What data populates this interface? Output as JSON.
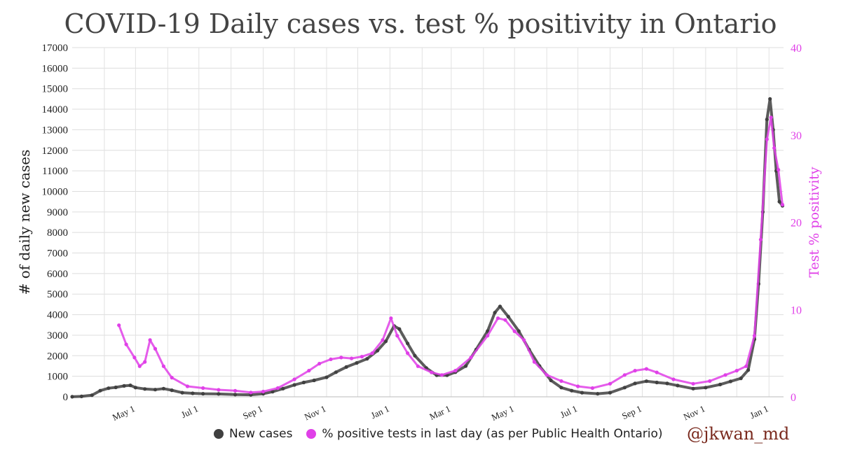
{
  "chart_data": {
    "type": "scatter",
    "title": "COVID-19 Daily cases vs. test % positivity in Ontario",
    "ylabel": "# of daily new cases",
    "y2label": "Test % positivity",
    "ylim": [
      0,
      17000
    ],
    "y2lim": [
      0,
      40
    ],
    "yticks": [
      "0",
      "1000",
      "2000",
      "3000",
      "4000",
      "5000",
      "6000",
      "7000",
      "8000",
      "9000",
      "10000",
      "11000",
      "12000",
      "13000",
      "14000",
      "15000",
      "16000",
      "17000"
    ],
    "y2ticks": [
      "0",
      "10",
      "20",
      "30",
      "40"
    ],
    "xticks": [
      "May 1",
      "Jul 1",
      "Sep 1",
      "Nov 1",
      "Jan 1",
      "Mar 1",
      "May 1",
      "Jul 1",
      "Sep 1",
      "Nov 1",
      "Jan 1"
    ],
    "x_range": [
      "2020-03-01",
      "2022-01-15"
    ],
    "grid": true,
    "legend_position": "bottom",
    "series": [
      {
        "name": "New cases",
        "color": "#404040",
        "axis": "left",
        "points": [
          [
            "2020-03-01",
            5
          ],
          [
            "2020-03-10",
            20
          ],
          [
            "2020-03-20",
            80
          ],
          [
            "2020-03-28",
            300
          ],
          [
            "2020-04-05",
            420
          ],
          [
            "2020-04-12",
            460
          ],
          [
            "2020-04-20",
            530
          ],
          [
            "2020-04-26",
            560
          ],
          [
            "2020-05-01",
            450
          ],
          [
            "2020-05-10",
            380
          ],
          [
            "2020-05-20",
            350
          ],
          [
            "2020-05-28",
            400
          ],
          [
            "2020-06-05",
            320
          ],
          [
            "2020-06-15",
            200
          ],
          [
            "2020-06-25",
            170
          ],
          [
            "2020-07-05",
            150
          ],
          [
            "2020-07-20",
            140
          ],
          [
            "2020-08-05",
            110
          ],
          [
            "2020-08-20",
            100
          ],
          [
            "2020-09-01",
            150
          ],
          [
            "2020-09-10",
            250
          ],
          [
            "2020-09-20",
            400
          ],
          [
            "2020-10-01",
            580
          ],
          [
            "2020-10-10",
            700
          ],
          [
            "2020-10-20",
            800
          ],
          [
            "2020-11-01",
            950
          ],
          [
            "2020-11-10",
            1200
          ],
          [
            "2020-11-20",
            1450
          ],
          [
            "2020-11-30",
            1650
          ],
          [
            "2020-12-10",
            1850
          ],
          [
            "2020-12-20",
            2250
          ],
          [
            "2020-12-28",
            2700
          ],
          [
            "2021-01-05",
            3450
          ],
          [
            "2021-01-10",
            3300
          ],
          [
            "2021-01-18",
            2600
          ],
          [
            "2021-01-25",
            2000
          ],
          [
            "2021-02-05",
            1400
          ],
          [
            "2021-02-15",
            1050
          ],
          [
            "2021-02-25",
            1050
          ],
          [
            "2021-03-05",
            1200
          ],
          [
            "2021-03-15",
            1500
          ],
          [
            "2021-03-25",
            2300
          ],
          [
            "2021-04-05",
            3200
          ],
          [
            "2021-04-12",
            4100
          ],
          [
            "2021-04-17",
            4400
          ],
          [
            "2021-04-25",
            3900
          ],
          [
            "2021-05-05",
            3200
          ],
          [
            "2021-05-15",
            2300
          ],
          [
            "2021-05-25",
            1500
          ],
          [
            "2021-06-05",
            800
          ],
          [
            "2021-06-15",
            450
          ],
          [
            "2021-06-25",
            300
          ],
          [
            "2021-07-05",
            200
          ],
          [
            "2021-07-20",
            150
          ],
          [
            "2021-08-01",
            200
          ],
          [
            "2021-08-15",
            450
          ],
          [
            "2021-08-25",
            650
          ],
          [
            "2021-09-05",
            760
          ],
          [
            "2021-09-15",
            700
          ],
          [
            "2021-09-25",
            650
          ],
          [
            "2021-10-05",
            550
          ],
          [
            "2021-10-20",
            400
          ],
          [
            "2021-11-01",
            450
          ],
          [
            "2021-11-15",
            600
          ],
          [
            "2021-11-25",
            750
          ],
          [
            "2021-12-05",
            900
          ],
          [
            "2021-12-12",
            1300
          ],
          [
            "2021-12-18",
            2800
          ],
          [
            "2021-12-22",
            5500
          ],
          [
            "2021-12-26",
            9000
          ],
          [
            "2021-12-30",
            13500
          ],
          [
            "2022-01-02",
            14500
          ],
          [
            "2022-01-05",
            13000
          ],
          [
            "2022-01-08",
            11000
          ],
          [
            "2022-01-11",
            9500
          ],
          [
            "2022-01-14",
            9300
          ]
        ]
      },
      {
        "name": "% positive tests in last day (as per Public Health Ontario)",
        "color": "#e040e8",
        "axis": "right",
        "points": [
          [
            "2020-04-15",
            8.2
          ],
          [
            "2020-04-22",
            6.0
          ],
          [
            "2020-04-30",
            4.5
          ],
          [
            "2020-05-05",
            3.5
          ],
          [
            "2020-05-10",
            4.0
          ],
          [
            "2020-05-15",
            6.5
          ],
          [
            "2020-05-20",
            5.5
          ],
          [
            "2020-05-28",
            3.5
          ],
          [
            "2020-06-05",
            2.2
          ],
          [
            "2020-06-20",
            1.2
          ],
          [
            "2020-07-05",
            1.0
          ],
          [
            "2020-07-20",
            0.8
          ],
          [
            "2020-08-05",
            0.7
          ],
          [
            "2020-08-20",
            0.5
          ],
          [
            "2020-09-01",
            0.6
          ],
          [
            "2020-09-15",
            1.0
          ],
          [
            "2020-10-01",
            2.0
          ],
          [
            "2020-10-15",
            3.0
          ],
          [
            "2020-10-25",
            3.8
          ],
          [
            "2020-11-05",
            4.3
          ],
          [
            "2020-11-15",
            4.5
          ],
          [
            "2020-11-25",
            4.4
          ],
          [
            "2020-12-05",
            4.6
          ],
          [
            "2020-12-15",
            5.0
          ],
          [
            "2020-12-25",
            6.5
          ],
          [
            "2021-01-02",
            9.0
          ],
          [
            "2021-01-08",
            7.0
          ],
          [
            "2021-01-18",
            5.0
          ],
          [
            "2021-01-28",
            3.5
          ],
          [
            "2021-02-10",
            2.8
          ],
          [
            "2021-02-20",
            2.5
          ],
          [
            "2021-03-05",
            3.0
          ],
          [
            "2021-03-20",
            4.5
          ],
          [
            "2021-04-05",
            7.0
          ],
          [
            "2021-04-15",
            9.0
          ],
          [
            "2021-04-22",
            8.8
          ],
          [
            "2021-05-01",
            7.5
          ],
          [
            "2021-05-10",
            6.5
          ],
          [
            "2021-05-20",
            4.0
          ],
          [
            "2021-06-01",
            2.5
          ],
          [
            "2021-06-15",
            1.8
          ],
          [
            "2021-07-01",
            1.2
          ],
          [
            "2021-07-15",
            1.0
          ],
          [
            "2021-08-01",
            1.5
          ],
          [
            "2021-08-15",
            2.5
          ],
          [
            "2021-08-25",
            3.0
          ],
          [
            "2021-09-05",
            3.2
          ],
          [
            "2021-09-15",
            2.8
          ],
          [
            "2021-10-01",
            2.0
          ],
          [
            "2021-10-20",
            1.5
          ],
          [
            "2021-11-05",
            1.8
          ],
          [
            "2021-11-20",
            2.5
          ],
          [
            "2021-12-01",
            3.0
          ],
          [
            "2021-12-10",
            3.5
          ],
          [
            "2021-12-18",
            7.0
          ],
          [
            "2021-12-24",
            18.0
          ],
          [
            "2021-12-30",
            29.5
          ],
          [
            "2022-01-03",
            32.0
          ],
          [
            "2022-01-06",
            28.5
          ],
          [
            "2022-01-10",
            26.0
          ],
          [
            "2022-01-14",
            22.0
          ]
        ]
      }
    ]
  },
  "legend": {
    "new_cases": "New cases",
    "positivity": "% positive tests in last day (as per Public Health Ontario)"
  },
  "credit": "@jkwan_md"
}
